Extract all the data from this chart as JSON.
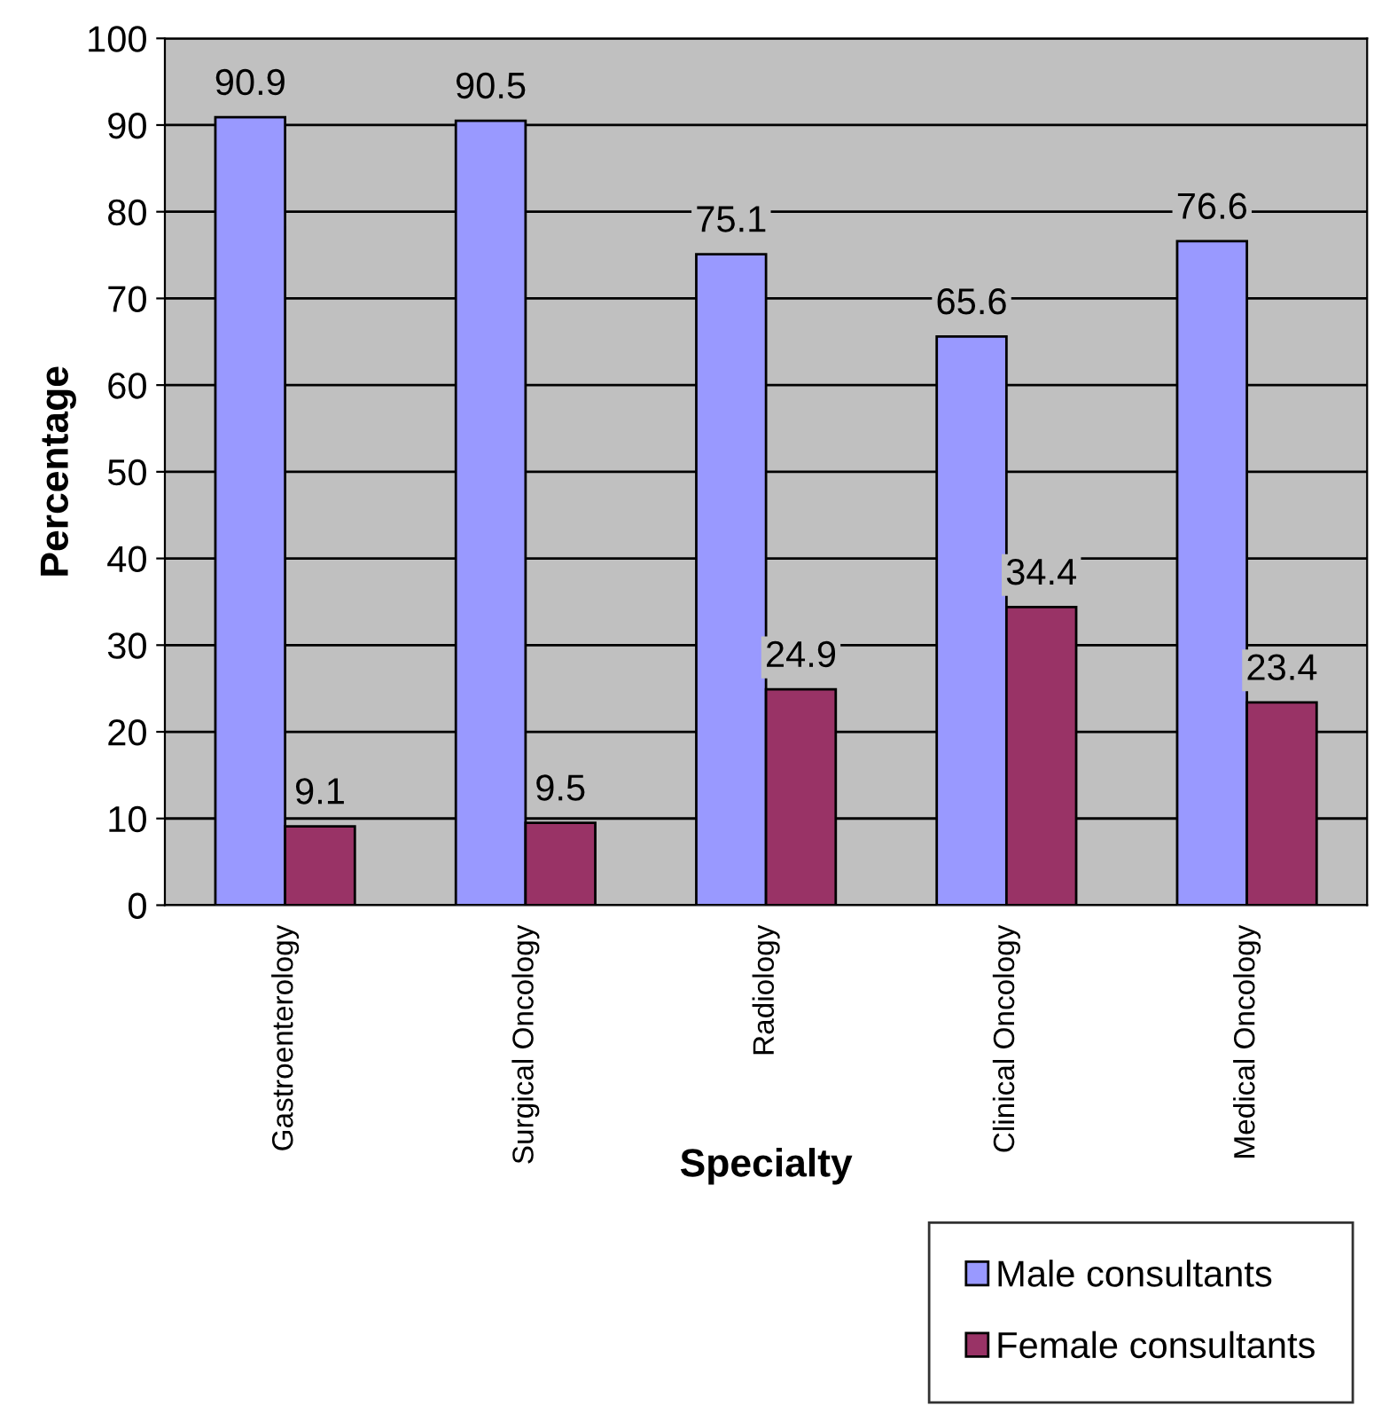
{
  "chart_data": {
    "type": "bar",
    "xlabel": "Specialty",
    "ylabel": "Percentage",
    "categories": [
      "Gastroenterology",
      "Surgical Oncology",
      "Radiology",
      "Clinical Oncology",
      "Medical Oncology"
    ],
    "series": [
      {
        "name": "Male consultants",
        "color": "#9999ff",
        "values": [
          90.9,
          90.5,
          75.1,
          65.6,
          76.6
        ]
      },
      {
        "name": "Female consultants",
        "color": "#993366",
        "values": [
          9.1,
          9.5,
          24.9,
          34.4,
          23.4
        ]
      }
    ],
    "ylim": [
      0,
      100
    ],
    "yticks": [
      0,
      10,
      20,
      30,
      40,
      50,
      60,
      70,
      80,
      90,
      100
    ],
    "grid": "y",
    "legend": "bottom right",
    "data_labels": true
  }
}
